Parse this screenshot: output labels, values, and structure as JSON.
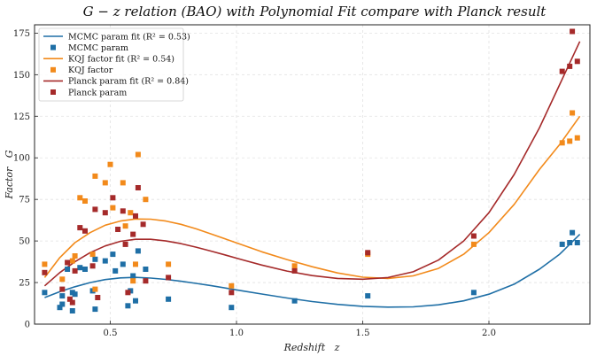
{
  "chart_data": {
    "type": "scatter",
    "title": "G − z relation (BAO) with Polynomial Fit compare with Planck result",
    "xlabel": "Redshift   z",
    "ylabel": "Factor   G",
    "xlim": [
      0.2,
      2.4
    ],
    "ylim": [
      0,
      180
    ],
    "xticks": [
      0.5,
      1.0,
      1.5,
      2.0
    ],
    "xtick_labels": [
      "0.5",
      "1.0",
      "1.5",
      "2.0"
    ],
    "yticks": [
      0,
      25,
      50,
      75,
      100,
      125,
      150,
      175
    ],
    "ytick_labels": [
      "0",
      "25",
      "50",
      "75",
      "100",
      "125",
      "150",
      "175"
    ],
    "grid": true,
    "legend_position": "top-left",
    "series": [
      {
        "name": "MCMC param fit (R² = 0.53)",
        "kind": "line",
        "color": "#1f6fa6",
        "x": [
          0.24,
          0.3,
          0.36,
          0.42,
          0.48,
          0.54,
          0.6,
          0.66,
          0.72,
          0.78,
          0.84,
          0.9,
          0.96,
          1.02,
          1.1,
          1.2,
          1.3,
          1.4,
          1.5,
          1.6,
          1.7,
          1.8,
          1.9,
          2.0,
          2.1,
          2.2,
          2.28,
          2.36
        ],
        "y": [
          16,
          19.5,
          22.5,
          25,
          26.8,
          27.8,
          28.1,
          27.7,
          26.9,
          25.8,
          24.5,
          23.1,
          21.6,
          20.1,
          18.1,
          15.7,
          13.6,
          11.9,
          10.7,
          10.2,
          10.4,
          11.6,
          14.0,
          18.0,
          24.0,
          33.0,
          42.0,
          54.0
        ]
      },
      {
        "name": "MCMC param",
        "kind": "scatter",
        "color": "#1f6fa6",
        "x": [
          0.24,
          0.3,
          0.31,
          0.31,
          0.33,
          0.35,
          0.35,
          0.36,
          0.38,
          0.4,
          0.43,
          0.44,
          0.44,
          0.48,
          0.51,
          0.52,
          0.55,
          0.57,
          0.58,
          0.59,
          0.6,
          0.61,
          0.64,
          0.73,
          0.98,
          1.23,
          1.52,
          1.94,
          2.29,
          2.32,
          2.33,
          2.35
        ],
        "y": [
          19,
          10,
          12,
          17,
          33,
          19,
          8,
          18,
          34,
          33,
          20,
          9,
          39,
          38,
          42,
          32,
          36,
          11,
          20,
          29,
          14,
          44,
          33,
          15,
          10,
          14,
          17,
          19,
          48,
          49,
          55,
          49
        ]
      },
      {
        "name": "KQJ factor fit (R² = 0.54)",
        "kind": "line",
        "color": "#f28a1b",
        "x": [
          0.24,
          0.3,
          0.36,
          0.42,
          0.48,
          0.54,
          0.6,
          0.66,
          0.72,
          0.78,
          0.84,
          0.9,
          0.96,
          1.02,
          1.1,
          1.2,
          1.3,
          1.4,
          1.5,
          1.6,
          1.7,
          1.8,
          1.9,
          2.0,
          2.1,
          2.2,
          2.28,
          2.36
        ],
        "y": [
          28,
          40,
          49,
          55,
          59.5,
          62,
          63.2,
          63.1,
          62,
          60,
          57.3,
          54.2,
          51,
          47.8,
          43.5,
          38.8,
          34.5,
          30.8,
          28.2,
          27.5,
          29.0,
          33.5,
          42,
          55,
          72,
          93,
          108,
          125
        ]
      },
      {
        "name": "KQJ factor",
        "kind": "scatter",
        "color": "#f28a1b",
        "x": [
          0.24,
          0.31,
          0.35,
          0.36,
          0.38,
          0.4,
          0.43,
          0.44,
          0.44,
          0.48,
          0.5,
          0.51,
          0.55,
          0.56,
          0.58,
          0.59,
          0.6,
          0.61,
          0.64,
          0.73,
          0.98,
          1.23,
          1.52,
          1.94,
          2.29,
          2.32,
          2.33,
          2.35
        ],
        "y": [
          36,
          27,
          38,
          41,
          76,
          74,
          42,
          89,
          21,
          85,
          96,
          70,
          85,
          59,
          67,
          26,
          36,
          102,
          75,
          36,
          23,
          35,
          42,
          48,
          109,
          110,
          127,
          112
        ]
      },
      {
        "name": "Planck param fit (R² = 0.84)",
        "kind": "line",
        "color": "#a52a2a",
        "x": [
          0.24,
          0.3,
          0.36,
          0.42,
          0.48,
          0.54,
          0.6,
          0.66,
          0.72,
          0.78,
          0.84,
          0.9,
          0.96,
          1.02,
          1.1,
          1.2,
          1.3,
          1.4,
          1.5,
          1.6,
          1.7,
          1.8,
          1.9,
          2.0,
          2.1,
          2.2,
          2.28,
          2.36
        ],
        "y": [
          23,
          31,
          37.5,
          43,
          47,
          49.8,
          51,
          51,
          50,
          48.4,
          46.3,
          43.9,
          41.4,
          38.8,
          35.5,
          31.9,
          29.2,
          27.5,
          27.0,
          28.0,
          31.5,
          38.5,
          50,
          67,
          90,
          118,
          144,
          170
        ]
      },
      {
        "name": "Planck param",
        "kind": "scatter",
        "color": "#a52a2a",
        "x": [
          0.24,
          0.31,
          0.33,
          0.34,
          0.35,
          0.36,
          0.38,
          0.4,
          0.43,
          0.44,
          0.45,
          0.48,
          0.51,
          0.53,
          0.55,
          0.56,
          0.57,
          0.59,
          0.6,
          0.61,
          0.63,
          0.64,
          0.73,
          0.98,
          1.23,
          1.52,
          1.94,
          2.29,
          2.32,
          2.33,
          2.35
        ],
        "y": [
          31,
          21,
          37,
          15,
          13,
          32,
          58,
          56,
          35,
          69,
          16,
          67,
          76,
          57,
          68,
          48,
          19,
          54,
          65,
          82,
          60,
          26,
          28,
          19,
          32,
          43,
          53,
          152,
          155,
          176,
          158
        ]
      }
    ]
  }
}
